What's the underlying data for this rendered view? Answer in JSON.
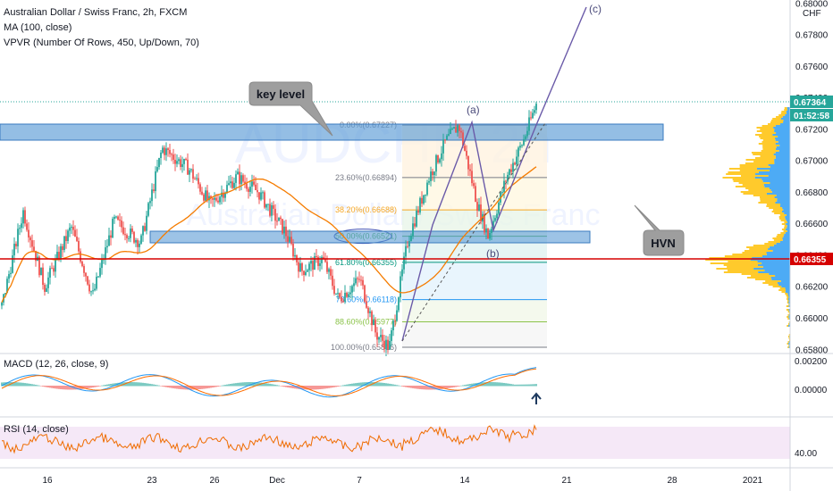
{
  "header": {
    "symbol_title": "Australian Dollar / Swiss Franc, 2h, FXCM",
    "ma_label": "MA (100, close)",
    "vpvr_label": "VPVR (Number Of Rows, 450, Up/Down, 70)"
  },
  "watermark": {
    "ticker": "AUDCHF, 2h",
    "name": "Australian Dollar / Swiss Franc"
  },
  "price_axis": {
    "currency": "CHF",
    "ticks": [
      "0.68000",
      "0.67800",
      "0.67600",
      "0.67400",
      "0.67200",
      "0.67000",
      "0.66800",
      "0.66600",
      "0.66400",
      "0.66200",
      "0.66000",
      "0.65800"
    ],
    "ylim": [
      0.6581,
      0.6801
    ]
  },
  "badges": {
    "last_price": "0.67364",
    "countdown": "01:52:58",
    "horizontal_level": "0.66355"
  },
  "time_axis": {
    "labels": [
      "16",
      "23",
      "26",
      "Dec",
      "7",
      "14",
      "21",
      "28",
      "2021"
    ]
  },
  "annotations": {
    "key_level": "key level",
    "hvn": "HVN",
    "wave_a": "(a)",
    "wave_b": "(b)",
    "wave_c": "(c)"
  },
  "fibonacci": [
    {
      "label": "0.00%(0.67227)",
      "price": 0.67227,
      "color": "#787b86"
    },
    {
      "label": "23.60%(0.66894)",
      "price": 0.66894,
      "color": "#787b86"
    },
    {
      "label": "38.20%(0.66688)",
      "price": 0.66688,
      "color": "#f5a623"
    },
    {
      "label": "50.00%(0.66521)",
      "price": 0.66521,
      "color": "#4caf50"
    },
    {
      "label": "61.80%(0.66355)",
      "price": 0.66355,
      "color": "#089981"
    },
    {
      "label": "78.60%(0.66118)",
      "price": 0.66118,
      "color": "#2196f3"
    },
    {
      "label": "88.60%(0.65977)",
      "price": 0.65977,
      "color": "#8bc34a"
    },
    {
      "label": "100.00%(0.65816)",
      "price": 0.65816,
      "color": "#787b86"
    }
  ],
  "macd": {
    "label": "MACD (12, 26, close, 9)",
    "ticks": [
      "0.00200",
      "0.00000"
    ]
  },
  "rsi": {
    "label": "RSI (14, close)",
    "ticks": [
      "40.00"
    ]
  },
  "colors": {
    "up": "#26a69a",
    "down": "#ef5350",
    "ma": "#f57c00",
    "zone": "#5b9bd5",
    "level": "#d50000",
    "wave": "#6a5aa8",
    "vp_up": "#ffc107",
    "vp_down": "#2196f3",
    "last_badge": "#26a69a"
  },
  "chart_data": {
    "type": "candlestick",
    "timeframe": "2h",
    "ylim": [
      0.6581,
      0.6801
    ],
    "levels": [
      {
        "name": "key level",
        "low": 0.6717,
        "high": 0.6726
      },
      {
        "name": "lower zone",
        "low": 0.6646,
        "high": 0.6652
      },
      {
        "name": "horizontal",
        "price": 0.66355
      }
    ],
    "swing_path": [
      {
        "t": 0.0,
        "p": 0.6608
      },
      {
        "t": 0.04,
        "p": 0.6668
      },
      {
        "t": 0.08,
        "p": 0.662
      },
      {
        "t": 0.13,
        "p": 0.6658
      },
      {
        "t": 0.17,
        "p": 0.6614
      },
      {
        "t": 0.21,
        "p": 0.6662
      },
      {
        "t": 0.26,
        "p": 0.6648
      },
      {
        "t": 0.3,
        "p": 0.6708
      },
      {
        "t": 0.35,
        "p": 0.6695
      },
      {
        "t": 0.39,
        "p": 0.6672
      },
      {
        "t": 0.44,
        "p": 0.669
      },
      {
        "t": 0.48,
        "p": 0.668
      },
      {
        "t": 0.53,
        "p": 0.6655
      },
      {
        "t": 0.56,
        "p": 0.663
      },
      {
        "t": 0.6,
        "p": 0.6638
      },
      {
        "t": 0.63,
        "p": 0.6612
      },
      {
        "t": 0.67,
        "p": 0.6625
      },
      {
        "t": 0.7,
        "p": 0.659
      },
      {
        "t": 0.725,
        "p": 0.65816
      },
      {
        "t": 0.76,
        "p": 0.665
      },
      {
        "t": 0.8,
        "p": 0.669
      },
      {
        "t": 0.83,
        "p": 0.6712
      },
      {
        "t": 0.855,
        "p": 0.67227
      },
      {
        "t": 0.89,
        "p": 0.6672
      },
      {
        "t": 0.91,
        "p": 0.6652
      },
      {
        "t": 0.945,
        "p": 0.669
      },
      {
        "t": 0.975,
        "p": 0.6712
      },
      {
        "t": 1.0,
        "p": 0.6736
      }
    ],
    "volume_profile": "up/down split, high-volume node near 0.6636"
  }
}
